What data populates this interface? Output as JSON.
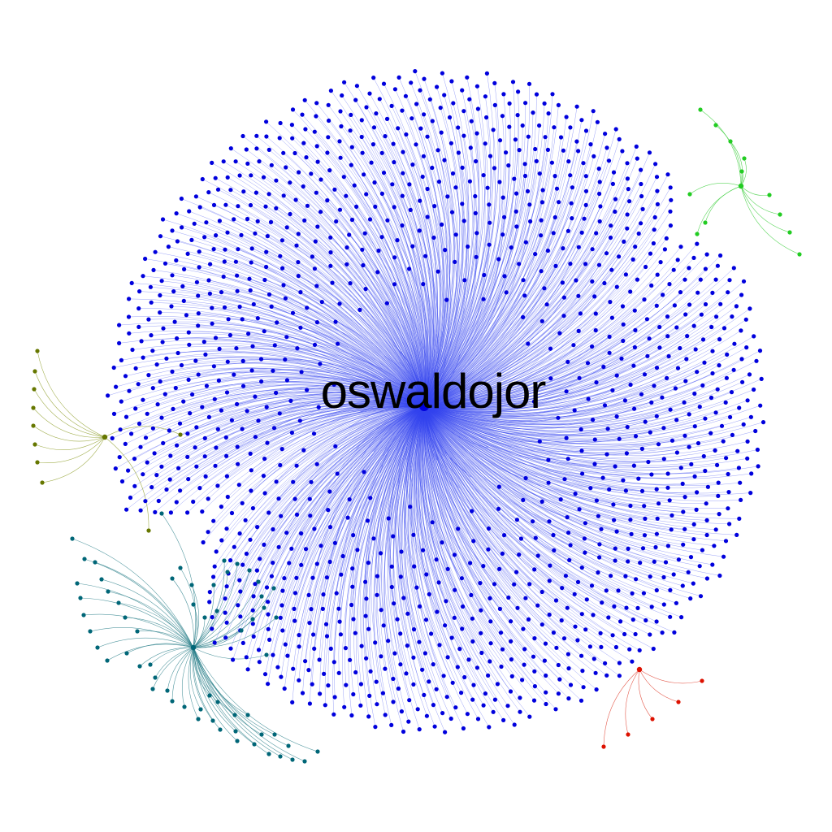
{
  "graph": {
    "hub_label": "oswaldojor",
    "clusters": [
      {
        "name": "main",
        "color": "#0000dd",
        "edge_color": "#3344ee"
      },
      {
        "name": "green",
        "color": "#22cc22",
        "edge_color": "#33cc33"
      },
      {
        "name": "olive",
        "color": "#667700",
        "edge_color": "#8a9a20"
      },
      {
        "name": "teal",
        "color": "#006677",
        "edge_color": "#2a7f8a"
      },
      {
        "name": "red",
        "color": "#dd1100",
        "edge_color": "#dd3322"
      }
    ]
  }
}
